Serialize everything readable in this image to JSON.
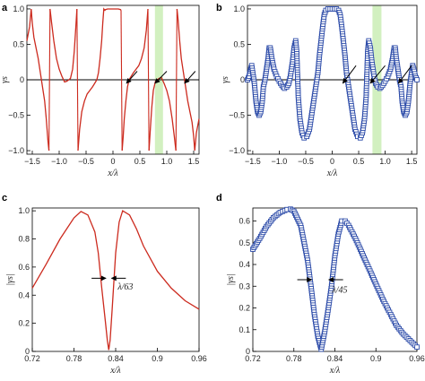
{
  "figure": {
    "panel_labels": [
      "a",
      "b",
      "c",
      "d"
    ]
  },
  "chart_data": [
    {
      "panel": "a",
      "type": "line",
      "xlabel": "x/λ",
      "ylabel": "γs",
      "xlim": [
        -1.6,
        1.6
      ],
      "ylim": [
        -1.05,
        1.05
      ],
      "xticks": [
        -1.5,
        -1,
        -0.5,
        0,
        0.5,
        1,
        1.5
      ],
      "xtick_labels": [
        "−1.5",
        "−1.0",
        "−0.5",
        "0",
        "0.5",
        "1.0",
        "1.5"
      ],
      "yticks": [
        -1,
        -0.5,
        0,
        0.5,
        1
      ],
      "ytick_labels": [
        "−1.0",
        "−0.5",
        "0",
        "0.5",
        "1.0"
      ],
      "series": [
        {
          "color": "#cc2a1e",
          "marker": "none",
          "description": "odd-symmetric resonance curve; zeros of the real part at ±0.30, ±0.82, ±1.33; near-singular jumps at ±0.17, ±0.67, ±1.19, ±1.52; plateau of 1.0 for |x| < 0.14",
          "x": [
            -1.6,
            -1.55,
            -1.52,
            -1.5,
            -1.47,
            -1.43,
            -1.39,
            -1.36,
            -1.33,
            -1.3,
            -1.27,
            -1.24,
            -1.21,
            -1.19,
            -1.17,
            -1.14,
            -1.1,
            -1.05,
            -1.0,
            -0.95,
            -0.9,
            -0.86,
            -0.82,
            -0.79,
            -0.75,
            -0.72,
            -0.69,
            -0.67,
            -0.65,
            -0.62,
            -0.58,
            -0.53,
            -0.48,
            -0.43,
            -0.38,
            -0.34,
            -0.3,
            -0.27,
            -0.24,
            -0.21,
            -0.19,
            -0.17,
            -0.15,
            -0.14,
            -0.1,
            -0.05,
            0.0,
            0.05,
            0.1,
            0.14,
            0.15,
            0.17,
            0.19,
            0.21,
            0.24,
            0.27,
            0.3,
            0.34,
            0.38,
            0.43,
            0.48,
            0.53,
            0.58,
            0.62,
            0.65,
            0.67,
            0.69,
            0.72,
            0.75,
            0.79,
            0.82,
            0.86,
            0.9,
            0.95,
            1.0,
            1.05,
            1.1,
            1.14,
            1.17,
            1.19,
            1.21,
            1.24,
            1.27,
            1.3,
            1.33,
            1.36,
            1.39,
            1.43,
            1.47,
            1.5,
            1.52,
            1.55,
            1.6
          ],
          "y": [
            0.55,
            0.75,
            1.0,
            0.8,
            0.6,
            0.45,
            0.3,
            0.15,
            0.0,
            -0.15,
            -0.3,
            -0.55,
            -0.85,
            -1.0,
            1.0,
            0.8,
            0.55,
            0.3,
            0.15,
            0.05,
            -0.03,
            -0.02,
            0.0,
            0.02,
            0.15,
            0.4,
            0.75,
            1.0,
            -1.0,
            -0.7,
            -0.45,
            -0.3,
            -0.2,
            -0.15,
            -0.1,
            -0.05,
            0.0,
            0.1,
            0.3,
            0.55,
            0.8,
            1.0,
            0.98,
            0.99,
            1.0,
            1.0,
            1.0,
            1.0,
            1.0,
            0.99,
            0.98,
            -1.0,
            -0.8,
            -0.55,
            -0.3,
            -0.1,
            0.0,
            0.05,
            0.1,
            0.15,
            0.2,
            0.3,
            0.45,
            0.7,
            1.0,
            -1.0,
            -0.75,
            -0.4,
            -0.15,
            -0.02,
            0.0,
            0.02,
            0.03,
            -0.05,
            -0.15,
            -0.3,
            -0.55,
            -0.8,
            -1.0,
            1.0,
            0.85,
            0.55,
            0.3,
            0.15,
            0.0,
            -0.15,
            -0.3,
            -0.45,
            -0.6,
            -0.8,
            -1.0,
            -0.75,
            -0.55
          ]
        }
      ],
      "hlines": [
        0
      ],
      "highlight_band": {
        "x0": 0.78,
        "x1": 0.93,
        "color": "#d2f0c0"
      },
      "arrows": [
        {
          "from": [
            0.25,
            -0.05
          ],
          "to": [
            0.45,
            0.12
          ]
        },
        {
          "from": [
            0.78,
            -0.05
          ],
          "to": [
            1.0,
            0.12
          ]
        },
        {
          "from": [
            1.33,
            -0.05
          ],
          "to": [
            1.53,
            0.12
          ]
        }
      ]
    },
    {
      "panel": "b",
      "type": "scatter",
      "xlabel": "x/λ",
      "ylabel": "γs",
      "xlim": [
        -1.6,
        1.6
      ],
      "ylim": [
        -1.05,
        1.05
      ],
      "xticks": [
        -1.5,
        -1,
        -0.5,
        0,
        0.5,
        1,
        1.5
      ],
      "xtick_labels": [
        "−1.5",
        "−1.0",
        "−0.5",
        "0",
        "0.5",
        "1.0",
        "1.5"
      ],
      "yticks": [
        -1,
        -0.5,
        0,
        0.5,
        1
      ],
      "ytick_labels": [
        "−1.0",
        "−0.5",
        "0",
        "0.5",
        "1.0"
      ],
      "series": [
        {
          "color": "#2b4aa8",
          "marker": "open-square",
          "description": "same system as panel a with amplitudes limited near the resonances; square markers every 0.02 in x",
          "x": [
            -1.6,
            -1.57,
            -1.55,
            -1.52,
            -1.5,
            -1.47,
            -1.44,
            -1.41,
            -1.38,
            -1.35,
            -1.32,
            -1.3,
            -1.27,
            -1.24,
            -1.21,
            -1.19,
            -1.17,
            -1.14,
            -1.1,
            -1.05,
            -1.0,
            -0.95,
            -0.9,
            -0.86,
            -0.82,
            -0.79,
            -0.75,
            -0.72,
            -0.69,
            -0.67,
            -0.64,
            -0.61,
            -0.57,
            -0.53,
            -0.48,
            -0.43,
            -0.39,
            -0.35,
            -0.31,
            -0.27,
            -0.24,
            -0.21,
            -0.18,
            -0.15,
            -0.12,
            -0.08,
            -0.04,
            0.0,
            0.04,
            0.08,
            0.12,
            0.15,
            0.18,
            0.21,
            0.24,
            0.27,
            0.31,
            0.35,
            0.39,
            0.43,
            0.48,
            0.53,
            0.57,
            0.61,
            0.64,
            0.67,
            0.69,
            0.72,
            0.75,
            0.79,
            0.82,
            0.86,
            0.9,
            0.95,
            1.0,
            1.05,
            1.1,
            1.14,
            1.17,
            1.19,
            1.21,
            1.24,
            1.27,
            1.3,
            1.32,
            1.35,
            1.38,
            1.41,
            1.44,
            1.47,
            1.5,
            1.52,
            1.55,
            1.57,
            1.6
          ],
          "y": [
            0.0,
            0.05,
            0.12,
            0.2,
            0.1,
            -0.05,
            -0.3,
            -0.45,
            -0.5,
            -0.45,
            -0.3,
            -0.1,
            0.0,
            0.15,
            0.3,
            0.45,
            0.45,
            0.3,
            0.15,
            0.05,
            -0.02,
            -0.08,
            -0.12,
            -0.1,
            -0.05,
            0.05,
            0.25,
            0.45,
            0.55,
            0.4,
            -0.25,
            -0.55,
            -0.75,
            -0.82,
            -0.8,
            -0.7,
            -0.5,
            -0.3,
            -0.1,
            0.1,
            0.35,
            0.55,
            0.75,
            0.92,
            0.98,
            1.0,
            1.0,
            1.0,
            1.0,
            1.0,
            0.98,
            0.92,
            0.75,
            0.55,
            0.35,
            0.1,
            -0.1,
            -0.3,
            -0.5,
            -0.7,
            -0.8,
            -0.82,
            -0.75,
            -0.55,
            -0.25,
            0.4,
            0.55,
            0.45,
            0.25,
            0.05,
            -0.05,
            -0.1,
            -0.12,
            -0.08,
            -0.02,
            0.05,
            0.15,
            0.3,
            0.45,
            0.45,
            0.3,
            0.15,
            0.0,
            -0.1,
            -0.3,
            -0.45,
            -0.5,
            -0.45,
            -0.3,
            -0.05,
            0.1,
            0.2,
            0.12,
            0.05,
            0.0
          ]
        }
      ],
      "hlines": [
        0
      ],
      "highlight_band": {
        "x0": 0.76,
        "x1": 0.93,
        "color": "#d2f0c0"
      },
      "arrows": [
        {
          "from": [
            0.2,
            -0.05
          ],
          "to": [
            0.45,
            0.2
          ]
        },
        {
          "from": [
            0.72,
            -0.05
          ],
          "to": [
            1.0,
            0.2
          ]
        },
        {
          "from": [
            1.25,
            -0.05
          ],
          "to": [
            1.5,
            0.2
          ]
        }
      ]
    },
    {
      "panel": "c",
      "type": "line",
      "xlabel": "x/λ",
      "ylabel": "|γs|",
      "xlim": [
        0.72,
        0.96
      ],
      "ylim": [
        0,
        1.02
      ],
      "xticks": [
        0.72,
        0.78,
        0.84,
        0.9,
        0.96
      ],
      "xtick_labels": [
        "0.72",
        "0.78",
        "0.84",
        "0.9",
        "0.96"
      ],
      "yticks": [
        0,
        0.2,
        0.4,
        0.6,
        0.8,
        1.0
      ],
      "ytick_labels": [
        "0",
        "0.2",
        "0.4",
        "0.6",
        "0.8",
        "1.0"
      ],
      "series": [
        {
          "color": "#cc2a1e",
          "marker": "none",
          "x": [
            0.72,
            0.74,
            0.76,
            0.78,
            0.79,
            0.8,
            0.81,
            0.815,
            0.82,
            0.825,
            0.828,
            0.83,
            0.832,
            0.835,
            0.84,
            0.845,
            0.85,
            0.86,
            0.87,
            0.88,
            0.9,
            0.92,
            0.94,
            0.96
          ],
          "y": [
            0.45,
            0.62,
            0.8,
            0.95,
            0.995,
            0.97,
            0.85,
            0.7,
            0.45,
            0.22,
            0.08,
            0.01,
            0.08,
            0.3,
            0.7,
            0.92,
            1.0,
            0.97,
            0.87,
            0.75,
            0.57,
            0.45,
            0.36,
            0.3
          ]
        }
      ],
      "annotation": {
        "text": "λ/63",
        "x": 0.843,
        "y": 0.44
      },
      "width_arrows": {
        "y": 0.52,
        "x_left": 0.826,
        "x_right": 0.834
      }
    },
    {
      "panel": "d",
      "type": "line",
      "xlabel": "x/λ",
      "ylabel": "|γs|",
      "xlim": [
        0.72,
        0.96
      ],
      "ylim": [
        0,
        0.66
      ],
      "xticks": [
        0.72,
        0.78,
        0.84,
        0.9,
        0.96
      ],
      "xtick_labels": [
        "0.72",
        "0.78",
        "0.84",
        "0.9",
        "0.96"
      ],
      "yticks": [
        0,
        0.1,
        0.2,
        0.3,
        0.4,
        0.5,
        0.6
      ],
      "ytick_labels": [
        "0",
        "0.1",
        "0.2",
        "0.3",
        "0.4",
        "0.5",
        "0.6"
      ],
      "series": [
        {
          "color": "#2b4aa8",
          "marker": "open-square",
          "description": "smooth envelope with square markers every 0.005 in x; solid line segment joins the markers across the narrow dip near 0.82",
          "x": [
            0.72,
            0.73,
            0.74,
            0.75,
            0.76,
            0.77,
            0.775,
            0.78,
            0.79,
            0.8,
            0.805,
            0.81,
            0.815,
            0.82,
            0.825,
            0.83,
            0.835,
            0.84,
            0.845,
            0.85,
            0.855,
            0.86,
            0.87,
            0.88,
            0.89,
            0.9,
            0.91,
            0.92,
            0.93,
            0.94,
            0.95,
            0.96
          ],
          "y": [
            0.47,
            0.52,
            0.575,
            0.615,
            0.64,
            0.653,
            0.655,
            0.645,
            0.58,
            0.42,
            0.3,
            0.17,
            0.07,
            0.01,
            0.09,
            0.19,
            0.3,
            0.44,
            0.54,
            0.6,
            0.6,
            0.58,
            0.52,
            0.45,
            0.38,
            0.31,
            0.24,
            0.18,
            0.12,
            0.08,
            0.05,
            0.02
          ]
        }
      ],
      "annotation": {
        "text": "λ/45",
        "x": 0.836,
        "y": 0.27
      },
      "width_arrows": {
        "y": 0.33,
        "x_left": 0.806,
        "x_right": 0.831
      }
    }
  ]
}
